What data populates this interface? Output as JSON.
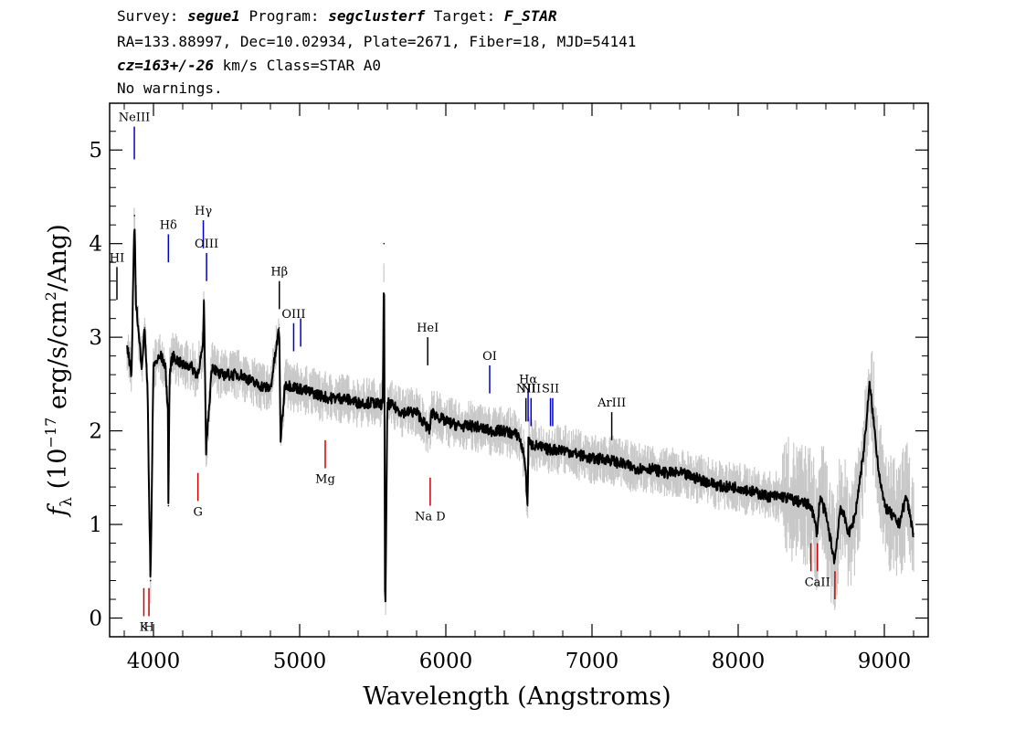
{
  "header": {
    "line1": {
      "survey_label": "Survey: ",
      "survey": "segue1",
      "program_label": " Program: ",
      "program": "segclusterf",
      "target_label": " Target: ",
      "target": "F_STAR"
    },
    "line2": "RA=133.88997, Dec=10.02934, Plate=2671, Fiber=18, MJD=54141",
    "line3": {
      "cz": "cz=163+/-26",
      "rest": " km/s Class=STAR A0"
    },
    "line4": "No warnings."
  },
  "chart_data": {
    "type": "line",
    "xlabel": "Wavelength (Angstroms)",
    "ylabel": "f_λ (10^-17 erg/s/cm^2/Ang)",
    "ylabel_parts": {
      "f": "f",
      "lambda": "λ",
      "pre": " (10",
      "exp": "−17",
      "mid": " erg/s/cm",
      "exp2": "2",
      "post": "/Ang)"
    },
    "xlim": [
      3700,
      9300
    ],
    "ylim": [
      -0.2,
      5.5
    ],
    "xticks": [
      4000,
      5000,
      6000,
      7000,
      8000,
      9000
    ],
    "yticks": [
      0,
      1,
      2,
      3,
      4,
      5
    ],
    "series": [
      {
        "color": "#000000",
        "x": [
          3820,
          3850,
          3870,
          3880,
          3900,
          3920,
          3940,
          3960,
          3970,
          3980,
          4000,
          4050,
          4080,
          4100,
          4102,
          4110,
          4130,
          4200,
          4250,
          4300,
          4340,
          4345,
          4360,
          4400,
          4450,
          4500,
          4600,
          4700,
          4800,
          4860,
          4870,
          4900,
          5000,
          5100,
          5200,
          5300,
          5400,
          5500,
          5550,
          5570,
          5577,
          5585,
          5600,
          5700,
          5800,
          5890,
          5900,
          6000,
          6100,
          6200,
          6300,
          6400,
          6500,
          6540,
          6560,
          6565,
          6580,
          6600,
          6700,
          6800,
          6900,
          7000,
          7100,
          7200,
          7300,
          7400,
          7500,
          7600,
          7700,
          7800,
          7900,
          8000,
          8100,
          8200,
          8300,
          8400,
          8500,
          8540,
          8560,
          8600,
          8660,
          8700,
          8760,
          8800,
          8860,
          8900,
          8960,
          9000,
          9050,
          9100,
          9150,
          9200
        ],
        "y": [
          2.9,
          2.6,
          4.3,
          3.4,
          3.0,
          2.7,
          3.1,
          2.4,
          1.3,
          0.4,
          2.7,
          2.8,
          2.7,
          2.2,
          1.2,
          2.6,
          2.8,
          2.7,
          2.7,
          2.6,
          2.9,
          3.4,
          1.8,
          2.7,
          2.6,
          2.6,
          2.6,
          2.5,
          2.45,
          3.1,
          1.9,
          2.5,
          2.45,
          2.4,
          2.35,
          2.35,
          2.3,
          2.3,
          2.28,
          2.3,
          4.0,
          -0.2,
          2.3,
          2.2,
          2.2,
          2.0,
          2.2,
          2.1,
          2.05,
          2.05,
          2.0,
          2.0,
          1.95,
          1.7,
          1.2,
          1.9,
          1.85,
          1.85,
          1.8,
          1.8,
          1.75,
          1.7,
          1.7,
          1.65,
          1.6,
          1.6,
          1.55,
          1.55,
          1.5,
          1.45,
          1.4,
          1.4,
          1.35,
          1.3,
          1.3,
          1.25,
          1.2,
          0.9,
          1.3,
          1.1,
          0.6,
          1.2,
          0.9,
          1.1,
          1.8,
          2.5,
          1.6,
          1.2,
          1.1,
          1.0,
          1.3,
          0.9
        ]
      }
    ],
    "noise_band_color": "#c8c8c8",
    "lines_blue": [
      {
        "label": "NeIII",
        "x": 3869,
        "y0": 4.9,
        "y1": 5.25
      },
      {
        "label": "Hδ",
        "x": 4102,
        "y0": 3.8,
        "y1": 4.1
      },
      {
        "label": "Hγ",
        "x": 4341,
        "y0": 3.95,
        "y1": 4.25
      },
      {
        "label": "OIII",
        "x": 4363,
        "y0": 3.6,
        "y1": 3.9
      },
      {
        "label": "OIII",
        "x": 4959,
        "y0": 2.85,
        "y1": 3.15
      },
      {
        "label": "",
        "x": 5007,
        "y0": 2.9,
        "y1": 3.2
      },
      {
        "label": "OI",
        "x": 6300,
        "y0": 2.4,
        "y1": 2.7
      },
      {
        "label": "Hα",
        "x": 6563,
        "y0": 2.1,
        "y1": 2.45
      },
      {
        "label": "NII",
        "x": 6583,
        "y0": 2.05,
        "y1": 2.35
      },
      {
        "label": "SII",
        "x": 6716,
        "y0": 2.05,
        "y1": 2.35
      },
      {
        "label": "",
        "x": 6731,
        "y0": 2.05,
        "y1": 2.35
      }
    ],
    "lines_black": [
      {
        "label": "HI",
        "x": 3750,
        "y0": 3.4,
        "y1": 3.75
      },
      {
        "label": "Hβ",
        "x": 4861,
        "y0": 3.3,
        "y1": 3.6
      },
      {
        "label": "HeI",
        "x": 5876,
        "y0": 2.7,
        "y1": 3.0
      },
      {
        "label": "NII",
        "x": 6548,
        "y0": 2.1,
        "y1": 2.35
      },
      {
        "label": "ArIII",
        "x": 7135,
        "y0": 1.9,
        "y1": 2.2
      }
    ],
    "lines_red": [
      {
        "label": "G",
        "x": 4304,
        "y0": 1.25,
        "y1": 1.55
      },
      {
        "label": "Mg",
        "x": 5175,
        "y0": 1.6,
        "y1": 1.9
      },
      {
        "label": "Na D",
        "x": 5893,
        "y0": 1.2,
        "y1": 1.5
      },
      {
        "label": "K",
        "x": 3934,
        "y0": 0.02,
        "y1": 0.32
      },
      {
        "label": "H",
        "x": 3969,
        "y0": 0.02,
        "y1": 0.32
      },
      {
        "label": "",
        "x": 8498,
        "y0": 0.5,
        "y1": 0.8
      },
      {
        "label": "CaII",
        "x": 8542,
        "y0": 0.5,
        "y1": 0.8
      },
      {
        "label": "",
        "x": 8662,
        "y0": 0.2,
        "y1": 0.5
      }
    ]
  }
}
